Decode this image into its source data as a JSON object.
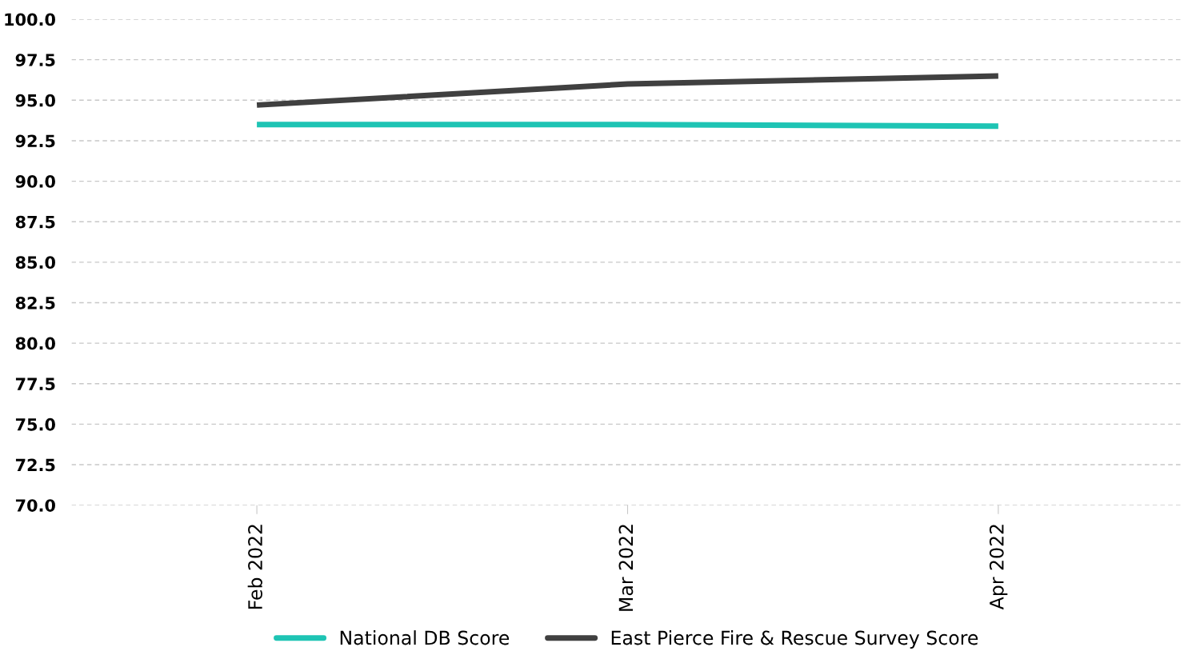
{
  "chart_data": {
    "type": "line",
    "categories": [
      "Feb 2022",
      "Mar 2022",
      "Apr 2022"
    ],
    "series": [
      {
        "name": "National DB Score",
        "color": "#1ec4b4",
        "values": [
          93.5,
          93.5,
          93.4
        ]
      },
      {
        "name": "East Pierce Fire & Rescue Survey Score",
        "color": "#404040",
        "values": [
          94.7,
          96.0,
          96.5
        ]
      }
    ],
    "ylim": [
      70,
      100
    ],
    "yticks": [
      {
        "value": 70,
        "label": "70.0"
      },
      {
        "value": 72.5,
        "label": "72.5"
      },
      {
        "value": 75,
        "label": "75.0"
      },
      {
        "value": 77.5,
        "label": "77.5"
      },
      {
        "value": 80,
        "label": "80.0"
      },
      {
        "value": 82.5,
        "label": "82.5"
      },
      {
        "value": 85,
        "label": "85.0"
      },
      {
        "value": 87.5,
        "label": "87.5"
      },
      {
        "value": 90,
        "label": "90.0"
      },
      {
        "value": 92.5,
        "label": "92.5"
      },
      {
        "value": 95,
        "label": "95.0"
      },
      {
        "value": 97.5,
        "label": "97.5"
      },
      {
        "value": 100,
        "label": "100.0"
      }
    ],
    "grid": "y",
    "legend": "bottom",
    "marker": "none",
    "line_style": "solid"
  }
}
